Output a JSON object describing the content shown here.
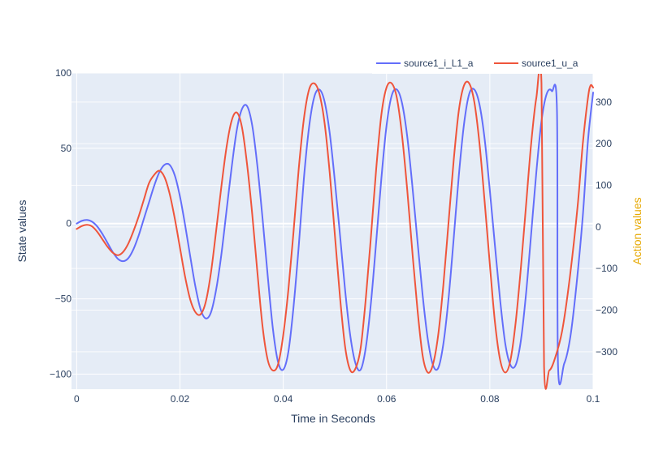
{
  "chart_data": {
    "type": "line",
    "xlabel": "Time in Seconds",
    "ylabel": "State values",
    "y2label": "Action values",
    "xlim": [
      -0.001,
      0.1
    ],
    "ylim": [
      -110,
      100
    ],
    "y2lim": [
      -390,
      370
    ],
    "x_ticks": [
      0,
      0.02,
      0.04,
      0.06,
      0.08,
      0.1
    ],
    "x_tick_labels": [
      "0",
      "0.02",
      "0.04",
      "0.06",
      "0.08",
      "0.1"
    ],
    "y_ticks": [
      -100,
      -50,
      0,
      50,
      100
    ],
    "y_tick_labels": [
      "−100",
      "−50",
      "0",
      "50",
      "100"
    ],
    "y2_ticks": [
      -300,
      -200,
      -100,
      0,
      100,
      200,
      300
    ],
    "y2_tick_labels": [
      "−300",
      "−200",
      "−100",
      "0",
      "100",
      "200",
      "300"
    ],
    "grid": true,
    "legend_position": "top-right",
    "colors": {
      "plot_bg": "#e5ecf6",
      "grid": "#ffffff",
      "text": "#2a3f5f",
      "y2_title": "#e6a800"
    },
    "series": [
      {
        "name": "source1_i_L1_a",
        "axis": "y",
        "color": "#636efa",
        "x": [
          0,
          0.001,
          0.002,
          0.003,
          0.004,
          0.005,
          0.006,
          0.007,
          0.008,
          0.009,
          0.01,
          0.011,
          0.012,
          0.013,
          0.014,
          0.015,
          0.016,
          0.017,
          0.018,
          0.019,
          0.02,
          0.021,
          0.022,
          0.023,
          0.024,
          0.025,
          0.026,
          0.027,
          0.028,
          0.029,
          0.03,
          0.031,
          0.032,
          0.033,
          0.034,
          0.035,
          0.036,
          0.037,
          0.038,
          0.039,
          0.04,
          0.041,
          0.042,
          0.043,
          0.044,
          0.045,
          0.046,
          0.047,
          0.048,
          0.049,
          0.05,
          0.051,
          0.052,
          0.053,
          0.054,
          0.055,
          0.056,
          0.057,
          0.058,
          0.059,
          0.06,
          0.061,
          0.062,
          0.063,
          0.064,
          0.065,
          0.066,
          0.067,
          0.068,
          0.069,
          0.07,
          0.071,
          0.072,
          0.073,
          0.074,
          0.075,
          0.076,
          0.077,
          0.078,
          0.079,
          0.08,
          0.081,
          0.082,
          0.083,
          0.084,
          0.085,
          0.086,
          0.087,
          0.088,
          0.089,
          0.09,
          0.091,
          0.092,
          0.093,
          0.094,
          0.095,
          0.096,
          0.097,
          0.098,
          0.099,
          0.1
        ],
        "y": [
          0,
          1.8,
          2.4,
          1.2,
          -2,
          -7,
          -13,
          -19,
          -23.5,
          -25,
          -23,
          -17,
          -8,
          3,
          14,
          25,
          34,
          39,
          39,
          32,
          18,
          -1,
          -22,
          -42,
          -57,
          -63,
          -59,
          -44,
          -21,
          8,
          37,
          62,
          76,
          78,
          65,
          38,
          3,
          -35,
          -70,
          -92,
          -97,
          -85,
          -55,
          -15,
          30,
          64,
          84,
          89,
          81,
          60,
          28,
          -8,
          -45,
          -75,
          -93,
          -97,
          -82,
          -52,
          -12,
          30,
          65,
          85,
          89,
          80,
          58,
          25,
          -12,
          -48,
          -77,
          -94,
          -96,
          -80,
          -50,
          -10,
          32,
          66,
          86,
          89,
          79,
          56,
          22,
          -15,
          -51,
          -80,
          -94,
          -94,
          -78,
          -47,
          -7,
          34,
          68,
          86,
          88,
          75,
          48,
          10,
          -30,
          -64,
          -87,
          -94,
          88
        ],
        "x_tail": [
          0.0932,
          0.0944,
          0.0956,
          0.0968,
          0.098,
          0.099,
          0.1
        ],
        "y_tail": [
          -94,
          -93,
          -75,
          -40,
          5,
          55,
          87
        ]
      },
      {
        "name": "source1_u_a",
        "axis": "y2",
        "color": "#ef553b",
        "x": [
          0,
          0.001,
          0.002,
          0.003,
          0.004,
          0.005,
          0.006,
          0.007,
          0.008,
          0.009,
          0.01,
          0.011,
          0.012,
          0.013,
          0.014,
          0.015,
          0.016,
          0.017,
          0.018,
          0.019,
          0.02,
          0.021,
          0.022,
          0.023,
          0.024,
          0.025,
          0.026,
          0.027,
          0.028,
          0.029,
          0.03,
          0.031,
          0.032,
          0.033,
          0.034,
          0.035,
          0.036,
          0.037,
          0.038,
          0.039,
          0.04,
          0.041,
          0.042,
          0.043,
          0.044,
          0.045,
          0.046,
          0.047,
          0.048,
          0.049,
          0.05,
          0.051,
          0.052,
          0.053,
          0.054,
          0.055,
          0.056,
          0.057,
          0.058,
          0.059,
          0.06,
          0.061,
          0.062,
          0.063,
          0.064,
          0.065,
          0.066,
          0.067,
          0.068,
          0.069,
          0.07,
          0.071,
          0.072,
          0.073,
          0.074,
          0.075,
          0.076,
          0.077,
          0.078,
          0.079,
          0.08,
          0.081,
          0.082,
          0.083,
          0.084,
          0.085,
          0.086,
          0.087,
          0.088,
          0.089,
          0.09,
          0.091,
          0.092,
          0.093,
          0.094,
          0.095,
          0.096,
          0.097,
          0.098,
          0.099,
          0.1
        ],
        "y": [
          -5,
          2,
          5,
          1,
          -12,
          -30,
          -48,
          -62,
          -68,
          -60,
          -40,
          -10,
          25,
          65,
          105,
          125,
          135,
          120,
          80,
          20,
          -50,
          -120,
          -175,
          -205,
          -210,
          -180,
          -110,
          -10,
          95,
          190,
          255,
          275,
          240,
          150,
          30,
          -110,
          -240,
          -320,
          -345,
          -330,
          -260,
          -150,
          -10,
          140,
          260,
          330,
          345,
          320,
          250,
          130,
          -20,
          -170,
          -290,
          -345,
          -340,
          -290,
          -170,
          -20,
          140,
          270,
          335,
          345,
          310,
          220,
          90,
          -60,
          -200,
          -310,
          -350,
          -330,
          -260,
          -140,
          10,
          160,
          280,
          340,
          345,
          300,
          200,
          60,
          -90,
          -230,
          -320,
          -350,
          -320,
          -230,
          -100,
          50,
          200,
          310,
          345,
          330,
          260,
          140,
          -10,
          -160,
          -280,
          -340,
          -345,
          -290,
          330
        ],
        "x_tail": [
          0.0905,
          0.0915,
          0.0925,
          0.094,
          0.0955,
          0.097,
          0.098,
          0.099,
          0.0995,
          0.1
        ],
        "y_tail": [
          -335,
          -345,
          -320,
          -250,
          -120,
          50,
          200,
          310,
          340,
          335
        ]
      }
    ]
  }
}
